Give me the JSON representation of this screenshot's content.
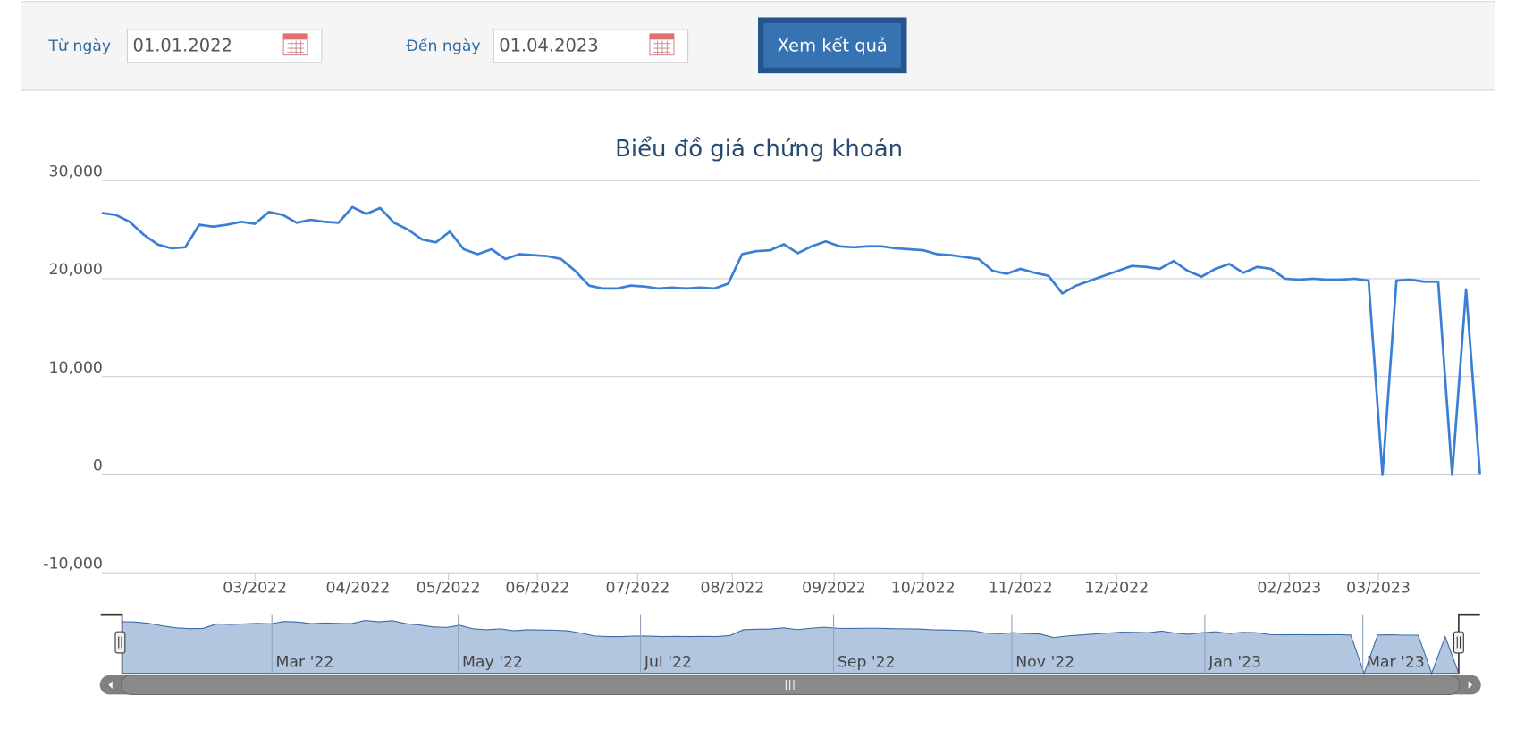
{
  "form": {
    "from_label": "Từ ngày",
    "from_value": "01.01.2022",
    "to_label": "Đến ngày",
    "to_value": "01.04.2023",
    "button": "Xem kết quả"
  },
  "chart_data": {
    "type": "line",
    "title": "Biểu đồ giá chứng khoán",
    "series": [
      {
        "color": "#3a7fd5",
        "values": [
          26700,
          26500,
          25800,
          24500,
          23500,
          23100,
          23200,
          25500,
          25300,
          25500,
          25800,
          25600,
          26800,
          26500,
          25700,
          26000,
          25800,
          25700,
          27300,
          26600,
          27200,
          25700,
          25000,
          24000,
          23700,
          24800,
          23000,
          22500,
          23000,
          22000,
          22500,
          22400,
          22300,
          22000,
          20800,
          19300,
          19000,
          19000,
          19300,
          19200,
          19000,
          19100,
          19000,
          19100,
          19000,
          19500,
          22500,
          22800,
          22900,
          23500,
          22600,
          23300,
          23800,
          23300,
          23200,
          23300,
          23300,
          23100,
          23000,
          22900,
          22500,
          22400,
          22200,
          22000,
          20800,
          20500,
          21000,
          20600,
          20300,
          18500,
          19300,
          19800,
          20300,
          20800,
          21300,
          21200,
          21000,
          21800,
          20800,
          20200,
          21000,
          21500,
          20600,
          21200,
          21000,
          20000,
          19900,
          20000,
          19900,
          19900,
          20000,
          19800,
          0,
          19800,
          19900,
          19700,
          19700,
          0,
          18900,
          0
        ]
      }
    ],
    "ylim": [
      -10000,
      30000
    ],
    "yticks": [
      {
        "value": -10000,
        "label": "-10,000"
      },
      0,
      {
        "value": 10000,
        "label": "10,000"
      },
      {
        "value": 20000,
        "label": "20,000"
      },
      {
        "value": 30000,
        "label": "30,000"
      }
    ],
    "xlim": [
      0,
      99
    ],
    "xticks": [
      {
        "value": 11,
        "label": "03/2022"
      },
      {
        "value": 18.4,
        "label": "04/2022"
      },
      {
        "value": 24.9,
        "label": "05/2022"
      },
      {
        "value": 31.3,
        "label": "06/2022"
      },
      {
        "value": 38.5,
        "label": "07/2022"
      },
      {
        "value": 45.3,
        "label": "08/2022"
      },
      {
        "value": 52.6,
        "label": "09/2022"
      },
      {
        "value": 59,
        "label": "10/2022"
      },
      {
        "value": 66,
        "label": "11/2022"
      },
      {
        "value": 72.9,
        "label": "12/2022"
      },
      {
        "value": 85.3,
        "label": "02/2023"
      },
      {
        "value": 91.7,
        "label": "03/2023"
      }
    ],
    "navigator_ticks": [
      {
        "value": 11.1,
        "label": "Mar '22"
      },
      {
        "value": 24.9,
        "label": "May '22"
      },
      {
        "value": 38.4,
        "label": "Jul '22"
      },
      {
        "value": 52.7,
        "label": "Sep '22"
      },
      {
        "value": 65.9,
        "label": "Nov '22"
      },
      {
        "value": 80.2,
        "label": "Jan '23"
      },
      {
        "value": 91.9,
        "label": "Mar '23"
      }
    ],
    "grid": true
  }
}
